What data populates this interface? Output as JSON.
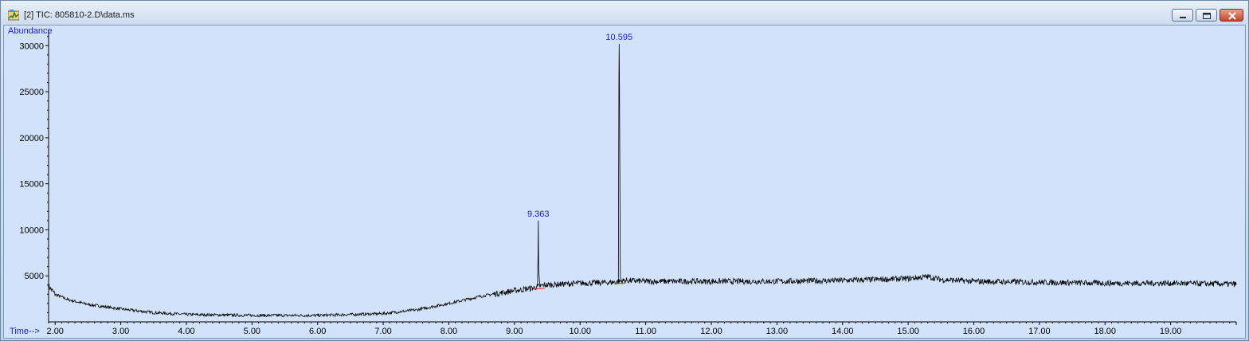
{
  "window": {
    "title": "[2] TIC: 805810-2.D\\data.ms",
    "icon": "chromatogram-app-icon",
    "buttons": {
      "minimize": "minimize-icon",
      "maximize": "maximize-icon",
      "close": "close-icon"
    }
  },
  "colors": {
    "plot_background": "#d1e2fa",
    "trace": "#000000",
    "labels": "#1a1ad8",
    "axis": "#000000",
    "integration_marks": "#e02020"
  },
  "chart_data": {
    "type": "line",
    "title": "",
    "ylabel": "Abundance",
    "xlabel": "Time-->",
    "xlim": [
      1.9,
      20.0
    ],
    "ylim": [
      0,
      31500
    ],
    "grid": false,
    "x_ticks": [
      "2.00",
      "3.00",
      "4.00",
      "5.00",
      "6.00",
      "7.00",
      "8.00",
      "9.00",
      "10.00",
      "11.00",
      "12.00",
      "13.00",
      "14.00",
      "15.00",
      "16.00",
      "17.00",
      "18.00",
      "19.00"
    ],
    "y_ticks": [
      "5000",
      "10000",
      "15000",
      "20000",
      "25000",
      "30000"
    ],
    "series": [
      {
        "x": [
          1.9,
          2.0,
          2.2,
          2.5,
          3.0,
          3.5,
          4.0,
          5.0,
          6.0,
          7.0,
          7.5,
          8.0,
          8.5,
          9.0,
          9.3,
          9.363,
          9.45,
          10.0,
          10.5,
          10.595,
          10.7,
          11.0,
          12.0,
          13.0,
          14.0,
          15.0,
          15.3,
          15.5,
          16.0,
          17.0,
          18.0,
          19.0,
          20.0
        ],
        "y": [
          3900,
          3000,
          2400,
          1900,
          1400,
          1000,
          800,
          700,
          700,
          900,
          1300,
          2000,
          2800,
          3400,
          3700,
          11000,
          4000,
          4200,
          4300,
          30200,
          4500,
          4400,
          4400,
          4400,
          4500,
          4700,
          4900,
          4600,
          4400,
          4300,
          4200,
          4200,
          4100
        ]
      }
    ],
    "peak_labels": [
      {
        "x": 9.363,
        "y": 11000,
        "text": "9.363"
      },
      {
        "x": 10.595,
        "y": 30200,
        "text": "10.595"
      }
    ]
  }
}
